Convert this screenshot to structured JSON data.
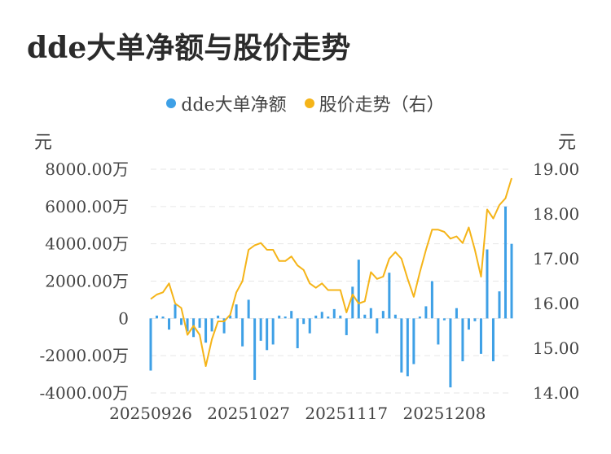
{
  "title": "dde大单净额与股价走势",
  "legend": {
    "items": [
      {
        "label": "dde大单净额",
        "color": "#3ea0e6"
      },
      {
        "label": "股价走势（右）",
        "color": "#f5b418"
      }
    ]
  },
  "axes": {
    "left_unit": "元",
    "right_unit": "元"
  },
  "chart_data": {
    "type": "bar+line",
    "title": "dde大单净额与股价走势",
    "y_left": {
      "ticks": [
        "8000.00万",
        "6000.00万",
        "4000.00万",
        "2000.00万",
        "0",
        "-2000.00万",
        "-4000.00万"
      ],
      "tick_values": [
        8000,
        6000,
        4000,
        2000,
        0,
        -2000,
        -4000
      ],
      "range": [
        -4000,
        8000
      ]
    },
    "y_right": {
      "ticks": [
        "19.00",
        "18.00",
        "17.00",
        "16.00",
        "15.00",
        "14.00"
      ],
      "tick_values": [
        19,
        18,
        17,
        16,
        15,
        14
      ],
      "range": [
        14,
        19
      ]
    },
    "x_tick_labels": [
      "20250926",
      "20251027",
      "20251117",
      "20251208"
    ],
    "x_tick_indices": [
      0,
      16,
      32,
      48
    ],
    "grid": true,
    "legend_position": "top",
    "series": [
      {
        "name": "dde大单净额",
        "type": "bar",
        "axis": "left",
        "values": [
          -2800,
          150,
          100,
          -600,
          750,
          -350,
          -700,
          -1000,
          -500,
          -1300,
          -700,
          150,
          -800,
          150,
          750,
          -1500,
          1000,
          -3300,
          -1200,
          -1700,
          -1400,
          150,
          100,
          400,
          -1600,
          -300,
          -800,
          150,
          350,
          100,
          500,
          150,
          -900,
          1700,
          3150,
          200,
          550,
          -800,
          400,
          2450,
          200,
          -2900,
          -3100,
          -2450,
          100,
          650,
          2000,
          -1400,
          -100,
          -3700,
          550,
          -2300,
          -600,
          -150,
          -1900,
          3700,
          -2300,
          1450,
          6000,
          4000
        ]
      },
      {
        "name": "股价走势（右）",
        "type": "line",
        "axis": "right",
        "values": [
          16.1,
          16.2,
          16.25,
          16.45,
          16.0,
          15.9,
          15.3,
          15.5,
          15.3,
          14.6,
          15.2,
          15.6,
          15.6,
          15.75,
          16.25,
          16.5,
          17.2,
          17.3,
          17.35,
          17.2,
          17.2,
          16.95,
          16.95,
          17.05,
          16.85,
          16.75,
          16.45,
          16.35,
          16.45,
          16.3,
          16.3,
          16.3,
          15.8,
          16.2,
          16.0,
          16.05,
          16.7,
          16.55,
          16.6,
          17.0,
          17.15,
          17.0,
          16.55,
          16.15,
          16.7,
          17.2,
          17.65,
          17.65,
          17.6,
          17.45,
          17.5,
          17.35,
          17.7,
          17.2,
          16.6,
          18.1,
          17.9,
          18.2,
          18.35,
          18.8
        ]
      }
    ]
  }
}
